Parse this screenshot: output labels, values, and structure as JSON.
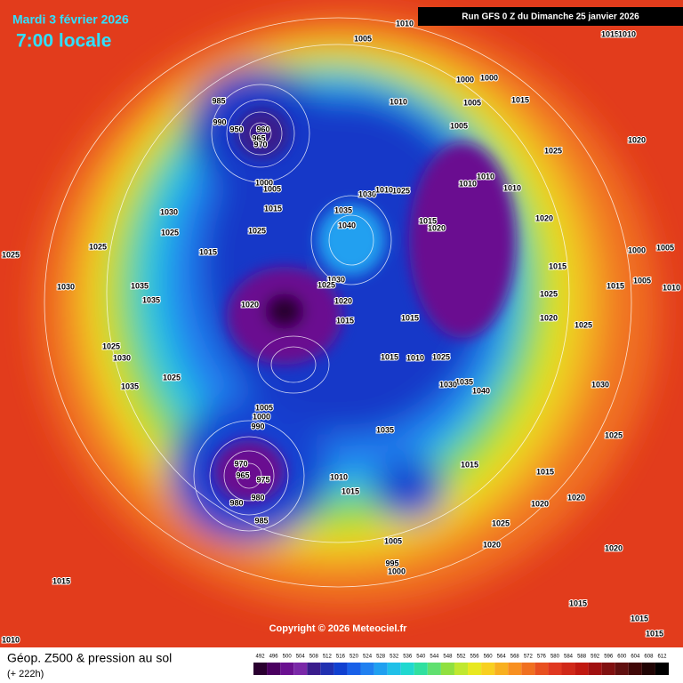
{
  "header": {
    "title": "Mardi 3 février 2026",
    "time": "7:00 locale",
    "run": "Run GFS 0 Z du Dimanche 25 janvier 2026"
  },
  "footer": {
    "title": "Géop. Z500 & pression au sol",
    "lead": "(+ 222h)",
    "copyright": "Copyright © 2026 Meteociel.fr"
  },
  "legend": {
    "levels": [
      492,
      496,
      500,
      504,
      508,
      512,
      516,
      520,
      524,
      528,
      532,
      536,
      540,
      544,
      548,
      552,
      556,
      560,
      564,
      568,
      572,
      576,
      580,
      584,
      588,
      592,
      596,
      600,
      604,
      608,
      612
    ],
    "colors": [
      "#2a0030",
      "#4a0060",
      "#6a1090",
      "#7a28a8",
      "#3a1c8c",
      "#2030b0",
      "#1040d0",
      "#1860e8",
      "#2080f0",
      "#20a0f0",
      "#20c0e8",
      "#20d8d0",
      "#30e0a0",
      "#60e070",
      "#90e040",
      "#c0e830",
      "#e8e820",
      "#f8d020",
      "#f8b020",
      "#f89020",
      "#f07020",
      "#e85020",
      "#e03820",
      "#d02818",
      "#c01810",
      "#a01010",
      "#801010",
      "#601010",
      "#400808",
      "#200404",
      "#000000"
    ]
  },
  "isobar_labels": [
    1010,
    1005,
    1015,
    1010,
    1000,
    1000,
    1010,
    1005,
    1015,
    985,
    990,
    960,
    950,
    965,
    970,
    1005,
    1020,
    1025,
    1000,
    1005,
    1010,
    1010,
    1010,
    1030,
    1025,
    1010,
    1030,
    1015,
    1035,
    1015,
    1020,
    1020,
    1025,
    1025,
    1040,
    1025,
    1015,
    1025,
    1005,
    1000,
    1015,
    1030,
    1030,
    1035,
    1025,
    1015,
    1005,
    1010,
    1025,
    1035,
    1020,
    1020,
    1015,
    1015,
    1020,
    1025,
    1025,
    1030,
    1015,
    1010,
    1025,
    1025,
    1035,
    1035,
    1040,
    1030,
    1030,
    1005,
    1000,
    1035,
    990,
    1025,
    1015,
    1015,
    970,
    965,
    975,
    1010,
    1015,
    980,
    980,
    985,
    1020,
    1020,
    1025,
    1005,
    1020,
    995,
    1000,
    1020,
    1015,
    1015,
    1015,
    1015,
    1010
  ]
}
